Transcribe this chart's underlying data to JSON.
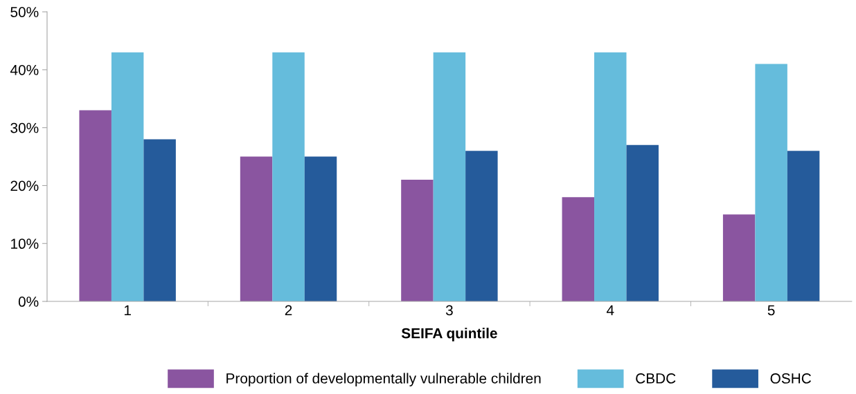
{
  "chart_data": {
    "type": "bar",
    "xlabel": "SEIFA quintile",
    "categories": [
      "1",
      "2",
      "3",
      "4",
      "5"
    ],
    "series": [
      {
        "name": "Proportion of developmentally vulnerable children",
        "color": "#8a55a0",
        "values": [
          33,
          25,
          21,
          18,
          15
        ]
      },
      {
        "name": "CBDC",
        "color": "#65bcdc",
        "values": [
          43,
          43,
          43,
          43,
          41
        ]
      },
      {
        "name": "OSHC",
        "color": "#255b9b",
        "values": [
          28,
          25,
          26,
          27,
          26
        ]
      }
    ],
    "ylim": [
      0,
      50
    ],
    "yticks": [
      {
        "value": 0,
        "label": "0%"
      },
      {
        "value": 10,
        "label": "10%"
      },
      {
        "value": 20,
        "label": "20%"
      },
      {
        "value": 30,
        "label": "30%"
      },
      {
        "value": 40,
        "label": "40%"
      },
      {
        "value": 50,
        "label": "50%"
      }
    ],
    "grid": false,
    "legend": "bottom"
  }
}
